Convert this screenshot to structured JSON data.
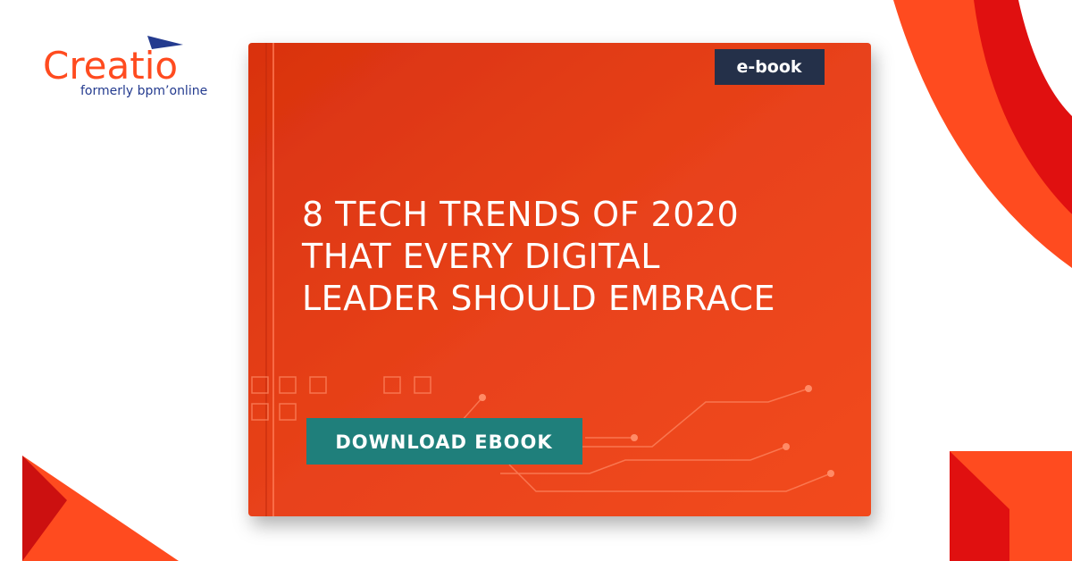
{
  "logo": {
    "name": "Creatio",
    "tagline": "formerly bpm’online"
  },
  "book": {
    "badge": "e-book",
    "title_lines": [
      "8 TECH TRENDS OF 2020",
      "THAT EVERY DIGITAL",
      "LEADER SHOULD EMBRACE"
    ],
    "button": "DOWNLOAD EBOOK"
  }
}
